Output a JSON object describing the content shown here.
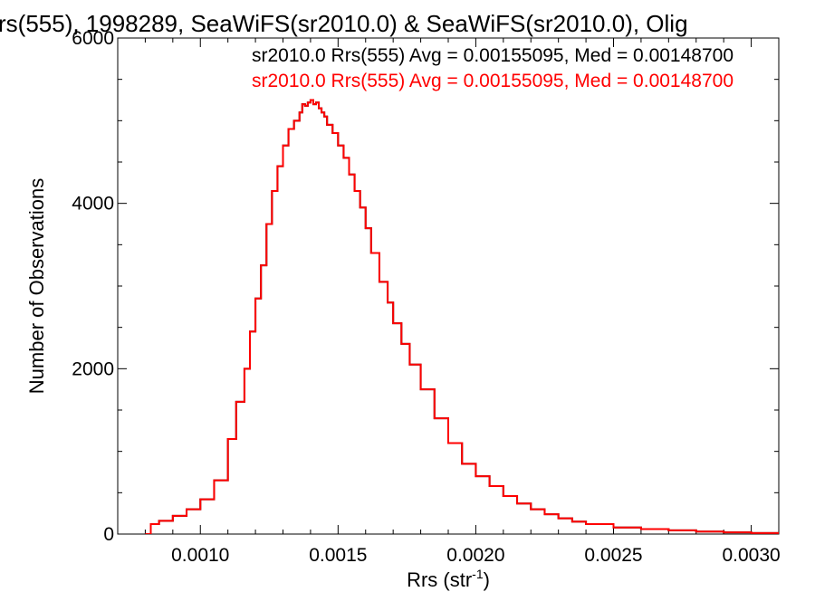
{
  "chart_data": {
    "type": "line",
    "title": "rs(555), 1998289, SeaWiFS(sr2010.0) & SeaWiFS(sr2010.0), Olig",
    "xlabel": "Rrs (str",
    "xlabel_superscript": "-1",
    "xlabel_close": ")",
    "ylabel": "Number of Observations",
    "xlim": [
      0.0007,
      0.0031
    ],
    "ylim": [
      0,
      6000
    ],
    "x_ticks": [
      {
        "value": 0.001,
        "label": "0.0010"
      },
      {
        "value": 0.0015,
        "label": "0.0015"
      },
      {
        "value": 0.002,
        "label": "0.0020"
      },
      {
        "value": 0.0025,
        "label": "0.0025"
      },
      {
        "value": 0.003,
        "label": "0.0030"
      }
    ],
    "y_ticks": [
      {
        "value": 0,
        "label": "0"
      },
      {
        "value": 2000,
        "label": "2000"
      },
      {
        "value": 4000,
        "label": "4000"
      },
      {
        "value": 6000,
        "label": "6000"
      }
    ],
    "grid": false,
    "legend_position": "top-right",
    "series": [
      {
        "name": "sr2010.0 Rrs(555) Avg = 0.00155095, Med = 0.00148700",
        "color": "#000000",
        "x": [
          0.0008,
          0.00082,
          0.00085,
          0.0009,
          0.00095,
          0.001,
          0.00105,
          0.0011,
          0.00113,
          0.00116,
          0.00118,
          0.0012,
          0.00122,
          0.00124,
          0.00126,
          0.00128,
          0.0013,
          0.00132,
          0.00134,
          0.00136,
          0.00137,
          0.00138,
          0.00139,
          0.0014,
          0.00141,
          0.00142,
          0.00143,
          0.00144,
          0.00145,
          0.00146,
          0.00148,
          0.0015,
          0.00152,
          0.00154,
          0.00156,
          0.00158,
          0.0016,
          0.00162,
          0.00165,
          0.00168,
          0.0017,
          0.00173,
          0.00176,
          0.0018,
          0.00185,
          0.0019,
          0.00195,
          0.002,
          0.00205,
          0.0021,
          0.00215,
          0.0022,
          0.00225,
          0.0023,
          0.00235,
          0.0024,
          0.0025,
          0.0026,
          0.0027,
          0.0028,
          0.0029,
          0.003,
          0.0031
        ],
        "values": [
          0,
          120,
          160,
          220,
          300,
          420,
          650,
          1150,
          1600,
          2000,
          2450,
          2850,
          3250,
          3750,
          4150,
          4450,
          4700,
          4900,
          5000,
          5100,
          5200,
          5180,
          5220,
          5250,
          5200,
          5220,
          5150,
          5100,
          5050,
          4950,
          4850,
          4700,
          4550,
          4350,
          4150,
          3950,
          3700,
          3400,
          3050,
          2800,
          2550,
          2300,
          2050,
          1750,
          1400,
          1100,
          850,
          700,
          580,
          460,
          370,
          300,
          240,
          190,
          150,
          120,
          80,
          60,
          45,
          30,
          20,
          12,
          5
        ]
      },
      {
        "name": "sr2010.0 Rrs(555) Avg = 0.00155095, Med = 0.00148700",
        "color": "#ff0000",
        "x": [
          0.0008,
          0.00082,
          0.00085,
          0.0009,
          0.00095,
          0.001,
          0.00105,
          0.0011,
          0.00113,
          0.00116,
          0.00118,
          0.0012,
          0.00122,
          0.00124,
          0.00126,
          0.00128,
          0.0013,
          0.00132,
          0.00134,
          0.00136,
          0.00137,
          0.00138,
          0.00139,
          0.0014,
          0.00141,
          0.00142,
          0.00143,
          0.00144,
          0.00145,
          0.00146,
          0.00148,
          0.0015,
          0.00152,
          0.00154,
          0.00156,
          0.00158,
          0.0016,
          0.00162,
          0.00165,
          0.00168,
          0.0017,
          0.00173,
          0.00176,
          0.0018,
          0.00185,
          0.0019,
          0.00195,
          0.002,
          0.00205,
          0.0021,
          0.00215,
          0.0022,
          0.00225,
          0.0023,
          0.00235,
          0.0024,
          0.0025,
          0.0026,
          0.0027,
          0.0028,
          0.0029,
          0.003,
          0.0031
        ],
        "values": [
          0,
          120,
          160,
          220,
          300,
          420,
          650,
          1150,
          1600,
          2000,
          2450,
          2850,
          3250,
          3750,
          4150,
          4450,
          4700,
          4900,
          5000,
          5100,
          5200,
          5180,
          5220,
          5250,
          5200,
          5220,
          5150,
          5100,
          5050,
          4950,
          4850,
          4700,
          4550,
          4350,
          4150,
          3950,
          3700,
          3400,
          3050,
          2800,
          2550,
          2300,
          2050,
          1750,
          1400,
          1100,
          850,
          700,
          580,
          460,
          370,
          300,
          240,
          190,
          150,
          120,
          80,
          60,
          45,
          30,
          20,
          12,
          5
        ]
      }
    ]
  }
}
